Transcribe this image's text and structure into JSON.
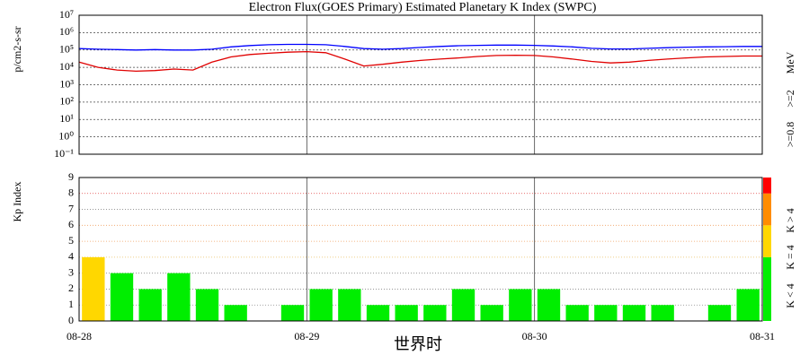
{
  "chart_data": [
    {
      "type": "line",
      "title": "Electron Flux(GOES Primary)  Estimated Planetary K Index (SWPC)",
      "ylabel": "p/cm2-s-sr",
      "unit": "MeV",
      "log_scale": true,
      "grid": true,
      "x": [
        0,
        2,
        4,
        6,
        8,
        10,
        12,
        14,
        16,
        18,
        20,
        22,
        24,
        26,
        28,
        30,
        32,
        34,
        36,
        38,
        40,
        42,
        44,
        46,
        48,
        50,
        52,
        54,
        56,
        58,
        60,
        62,
        64,
        66,
        68,
        70,
        72
      ],
      "xlim": [
        0,
        72
      ],
      "xticks": [
        0,
        24,
        48,
        72
      ],
      "ylim": [
        0.1,
        10000000
      ],
      "yticks": [
        {
          "value": 0.1,
          "label": "10⁻¹"
        },
        {
          "value": 1,
          "label": "10⁰"
        },
        {
          "value": 10,
          "label": "10¹"
        },
        {
          "value": 100,
          "label": "10²"
        },
        {
          "value": 1000,
          "label": "10³"
        },
        {
          "value": 10000,
          "label": "10⁴"
        },
        {
          "value": 100000,
          "label": "10⁵"
        },
        {
          "value": 1000000,
          "label": "10⁶"
        },
        {
          "value": 10000000,
          "label": "10⁷"
        }
      ],
      "series": [
        {
          "name": ">=0.8",
          "color": "#0000ff",
          "values": [
            120000,
            110000,
            105000,
            100000,
            105000,
            100000,
            100000,
            110000,
            150000,
            180000,
            200000,
            210000,
            210000,
            200000,
            160000,
            120000,
            110000,
            120000,
            140000,
            160000,
            175000,
            185000,
            190000,
            190000,
            185000,
            170000,
            150000,
            125000,
            115000,
            115000,
            125000,
            135000,
            145000,
            150000,
            155000,
            160000,
            160000
          ]
        },
        {
          "name": ">=2",
          "color": "#e00000",
          "values": [
            20000,
            10000,
            7000,
            6000,
            6500,
            8000,
            7000,
            20000,
            40000,
            55000,
            65000,
            75000,
            80000,
            70000,
            30000,
            12000,
            15000,
            20000,
            25000,
            30000,
            35000,
            42000,
            48000,
            50000,
            48000,
            40000,
            30000,
            22000,
            18000,
            20000,
            25000,
            30000,
            35000,
            40000,
            42000,
            45000,
            45000
          ]
        }
      ]
    },
    {
      "type": "bar",
      "ylabel": "Kp Index",
      "xlabel": "世界时",
      "grid": true,
      "x": [
        1.5,
        4.5,
        7.5,
        10.5,
        13.5,
        16.5,
        19.5,
        22.5,
        25.5,
        28.5,
        31.5,
        34.5,
        37.5,
        40.5,
        43.5,
        46.5,
        49.5,
        52.5,
        55.5,
        58.5,
        61.5,
        64.5,
        67.5,
        70.5
      ],
      "values": [
        4,
        3,
        2,
        3,
        2,
        1,
        0,
        1,
        2,
        2,
        1,
        1,
        1,
        2,
        1,
        2,
        2,
        1,
        1,
        1,
        1,
        0,
        1,
        2
      ],
      "colors": [
        "#ffd700",
        "#00ee00",
        "#00ee00",
        "#00ee00",
        "#00ee00",
        "#00ee00",
        "#00ee00",
        "#00ee00",
        "#00ee00",
        "#00ee00",
        "#00ee00",
        "#00ee00",
        "#00ee00",
        "#00ee00",
        "#00ee00",
        "#00ee00",
        "#00ee00",
        "#00ee00",
        "#00ee00",
        "#00ee00",
        "#00ee00",
        "#00ee00",
        "#00ee00",
        "#00ee00"
      ],
      "xlim": [
        0,
        72
      ],
      "xticks": [
        {
          "value": 0,
          "label": "08-28"
        },
        {
          "value": 24,
          "label": "08-29"
        },
        {
          "value": 48,
          "label": "08-30"
        },
        {
          "value": 72,
          "label": "08-31"
        }
      ],
      "ylim": [
        0,
        9
      ],
      "yticks": [
        0,
        1,
        2,
        3,
        4,
        5,
        6,
        7,
        8,
        9
      ],
      "grid_colors": [
        "#888",
        "#888",
        "#888",
        "#888",
        "#e8c060",
        "#f0a060",
        "#f0a060",
        "#888",
        "#e04040",
        "#e04040"
      ],
      "color_bar": [
        {
          "from": 0,
          "to": 4,
          "color": "#00ee00"
        },
        {
          "from": 4,
          "to": 6,
          "color": "#ffd700"
        },
        {
          "from": 6,
          "to": 8,
          "color": "#ff8c00"
        },
        {
          "from": 8,
          "to": 9,
          "color": "#ff0000"
        }
      ],
      "legend": [
        {
          "label": "K < 4",
          "color": "#00ee00"
        },
        {
          "label": "K = 4",
          "color": "#ffd700"
        },
        {
          "label": "K > 4",
          "color": "#ff0000"
        }
      ]
    }
  ]
}
